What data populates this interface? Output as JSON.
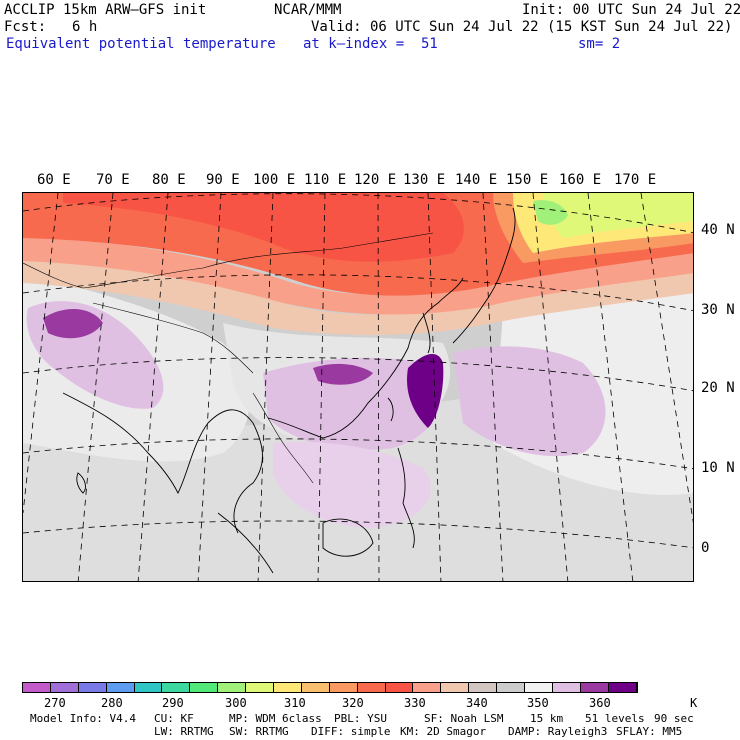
{
  "header": {
    "model": "ACCLIP 15km ARW–GFS init",
    "org": "NCAR/MMM",
    "init": "Init: 00 UTC Sun 24 Jul 22",
    "fcst_label": "Fcst:",
    "fcst_value": "6 h",
    "valid": "Valid: 06 UTC Sun 24 Jul 22 (15 KST Sun 24 Jul 22)",
    "field": "Equivalent potential temperature",
    "level": "at k–index =  51",
    "smooth": "sm= 2"
  },
  "lon_labels": [
    "60 E",
    "70 E",
    "80 E",
    "90 E",
    "100 E",
    "110 E",
    "120 E",
    "130 E",
    "140 E",
    "150 E",
    "160 E",
    "170 E"
  ],
  "lat_labels": [
    "40 N",
    "30 N",
    "20 N",
    "10 N",
    "0"
  ],
  "colorbar": {
    "colors": [
      "#c35ac9",
      "#a070d8",
      "#7a7ae6",
      "#5e9cf0",
      "#31c6c6",
      "#3cd8a0",
      "#52e87a",
      "#a0f07a",
      "#e0f878",
      "#fde878",
      "#fac070",
      "#f89a62",
      "#f86a4e",
      "#f85446",
      "#f8a08a",
      "#f0c8b0",
      "#d2c6c2",
      "#cccccc",
      "#f2f2f2",
      "#e0c0e2",
      "#9a3aa0",
      "#6e0088"
    ],
    "labels": [
      "270",
      "280",
      "290",
      "300",
      "310",
      "320",
      "330",
      "340",
      "350",
      "360"
    ],
    "unit": "K"
  },
  "footer": {
    "line1": [
      "Model Info: V4.4",
      "CU: KF",
      "MP: WDM 6class",
      "PBL: YSU",
      "SF: Noah LSM",
      "15 km",
      "51 levels",
      "90 sec"
    ],
    "line2": [
      "LW: RRTMG",
      "SW: RRTMG",
      "DIFF: simple",
      "KM: 2D Smagor",
      "DAMP: Rayleigh3",
      "SFLAY: MM5"
    ]
  }
}
